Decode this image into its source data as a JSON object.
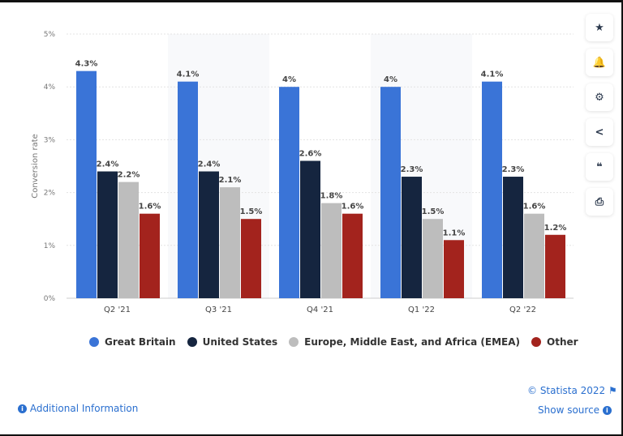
{
  "chart_data": {
    "type": "bar",
    "ylabel": "Conversion rate",
    "ylim": [
      0,
      5
    ],
    "yticks": [
      "0%",
      "1%",
      "2%",
      "3%",
      "4%",
      "5%"
    ],
    "categories": [
      "Q2 '21",
      "Q3 '21",
      "Q4 '21",
      "Q1 '22",
      "Q2 '22"
    ],
    "series": [
      {
        "name": "Great Britain",
        "color": "#3a74d7",
        "values": [
          4.3,
          4.1,
          4,
          4,
          4.1
        ],
        "labels": [
          "4.3%",
          "4.1%",
          "4%",
          "4%",
          "4.1%"
        ]
      },
      {
        "name": "United States",
        "color": "#15253f",
        "values": [
          2.4,
          2.4,
          2.6,
          2.3,
          2.3
        ],
        "labels": [
          "2.4%",
          "2.4%",
          "2.6%",
          "2.3%",
          "2.3%"
        ]
      },
      {
        "name": "Europe, Middle East, and Africa (EMEA)",
        "color": "#bdbdbd",
        "values": [
          2.2,
          2.1,
          1.8,
          1.5,
          1.6
        ],
        "labels": [
          "2.2%",
          "2.1%",
          "1.8%",
          "1.5%",
          "1.6%"
        ]
      },
      {
        "name": "Other",
        "color": "#a3231d",
        "values": [
          1.6,
          1.5,
          1.6,
          1.1,
          1.2
        ],
        "labels": [
          "1.6%",
          "1.5%",
          "1.6%",
          "1.1%",
          "1.2%"
        ]
      }
    ],
    "grid": true,
    "legend": "bottom"
  },
  "toolbar": [
    {
      "icon": "star-icon",
      "glyph": "★"
    },
    {
      "icon": "bell-icon",
      "glyph": "🔔"
    },
    {
      "icon": "gear-icon",
      "glyph": "⚙"
    },
    {
      "icon": "share-icon",
      "glyph": "<"
    },
    {
      "icon": "quote-icon",
      "glyph": "❝"
    },
    {
      "icon": "print-icon",
      "glyph": "⎙"
    }
  ],
  "footer": {
    "copyright": "© Statista 2022",
    "show_source": "Show source",
    "additional_info": "Additional Information"
  }
}
